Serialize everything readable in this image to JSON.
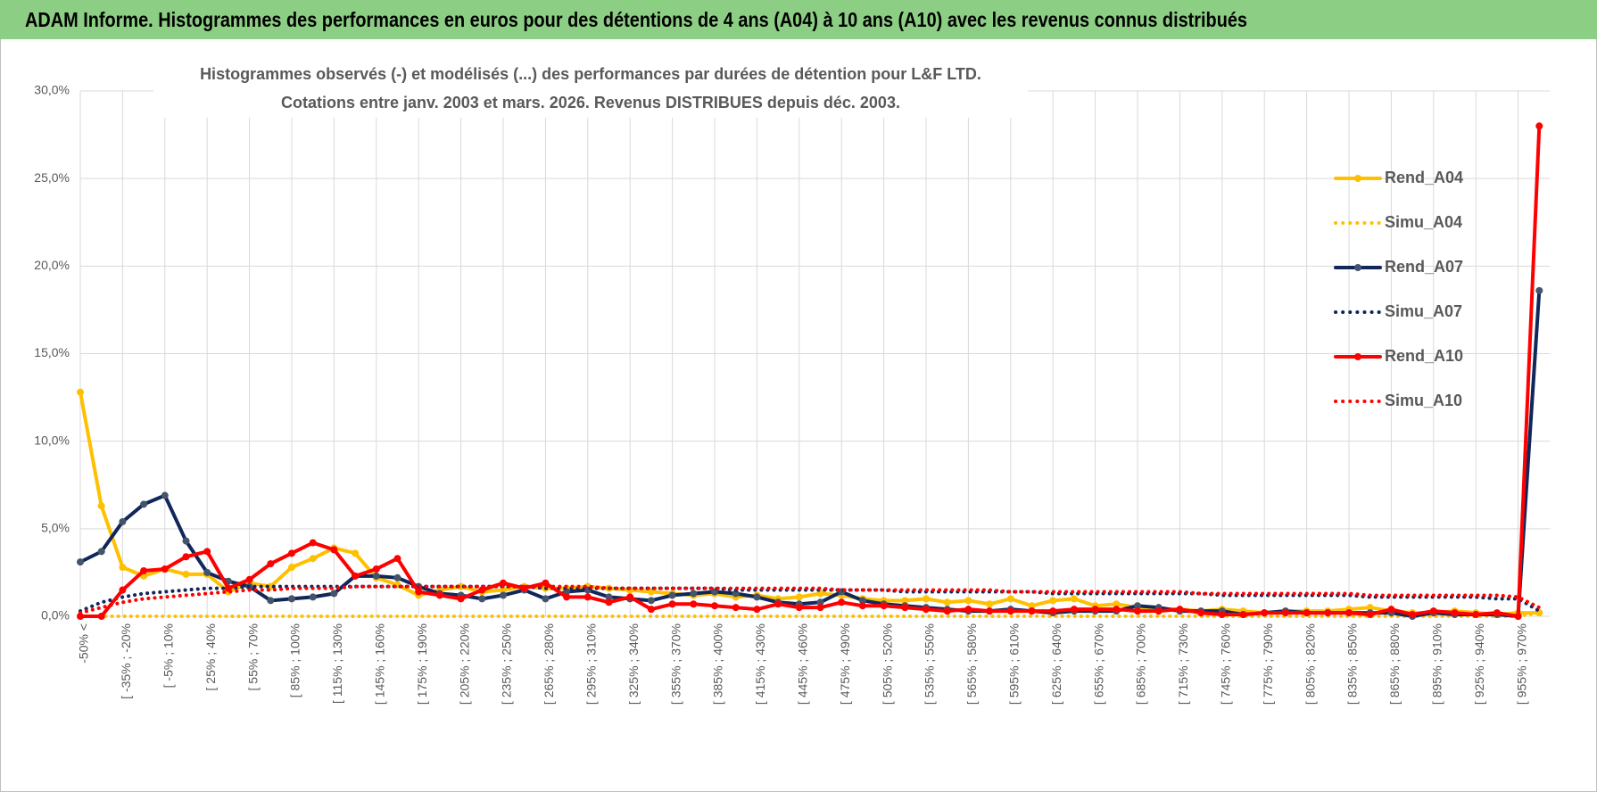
{
  "header": {
    "title": "ADAM Informe. Histogrammes des performances en euros pour des détentions de 4 ans (A04) à 10 ans (A10) avec les revenus connus distribués"
  },
  "chart_data": {
    "type": "line",
    "title": "Histogrammes observés (-) et modélisés (...) des performances par durées de détention pour L&F LTD.",
    "subtitle": "Cotations entre janv. 2003 et mars. 2026. Revenus DISTRIBUES depuis déc. 2003.",
    "categories": [
      "-50% <",
      null,
      "[ -35% ; -20%",
      null,
      "[ -5% ; 10%",
      null,
      "[ 25% ; 40%",
      null,
      "[ 55% ; 70%",
      null,
      "[ 85% ; 100%",
      null,
      "[ 115% ; 130%",
      null,
      "[ 145% ; 160%",
      null,
      "[ 175% ; 190%",
      null,
      "[ 205% ; 220%",
      null,
      "[ 235% ; 250%",
      null,
      "[ 265% ; 280%",
      null,
      "[ 295% ; 310%",
      null,
      "[ 325% ; 340%",
      null,
      "[ 355% ; 370%",
      null,
      "[ 385% ; 400%",
      null,
      "[ 415% ; 430%",
      null,
      "[ 445% ; 460%",
      null,
      "[ 475% ; 490%",
      null,
      "[ 505% ; 520%",
      null,
      "[ 535% ; 550%",
      null,
      "[ 565% ; 580%",
      null,
      "[ 595% ; 610%",
      null,
      "[ 625% ; 640%",
      null,
      "[ 655% ; 670%",
      null,
      "[ 685% ; 700%",
      null,
      "[ 715% ; 730%",
      null,
      "[ 745% ; 760%",
      null,
      "[ 775% ; 790%",
      null,
      "[ 805% ; 820%",
      null,
      "[ 835% ; 850%",
      null,
      "[ 865% ; 880%",
      null,
      "[ 895% ; 910%",
      null,
      "[ 925% ; 940%",
      null,
      "[ 955% ; 970%",
      null
    ],
    "series": [
      {
        "name": "Rend_A04",
        "color": "#ffc000",
        "style": "solid",
        "markers": true,
        "values": [
          12.8,
          6.3,
          2.8,
          2.3,
          2.7,
          2.4,
          2.4,
          1.4,
          1.9,
          1.7,
          2.8,
          3.3,
          3.9,
          3.6,
          2.2,
          1.8,
          1.2,
          1.5,
          1.7,
          1.4,
          1.5,
          1.7,
          1.6,
          1.6,
          1.7,
          1.6,
          1.5,
          1.4,
          1.3,
          1.2,
          1.3,
          1.1,
          1.2,
          1.0,
          1.1,
          1.3,
          1.2,
          1.0,
          0.9,
          0.9,
          1.0,
          0.8,
          0.9,
          0.7,
          1.0,
          0.6,
          0.9,
          1.0,
          0.6,
          0.7,
          0.5,
          0.4,
          0.4,
          0.3,
          0.4,
          0.3,
          0.2,
          0.3,
          0.3,
          0.3,
          0.4,
          0.5,
          0.3,
          0.2,
          0.2,
          0.3,
          0.2,
          0.1,
          0.2,
          0.2
        ]
      },
      {
        "name": "Simu_A04",
        "color": "#ffc000",
        "style": "dotted",
        "markers": false,
        "values": [
          0,
          0,
          0,
          0,
          0,
          0,
          0,
          0,
          0,
          0,
          0,
          0,
          0,
          0,
          0,
          0,
          0,
          0,
          0,
          0,
          0,
          0,
          0,
          0,
          0,
          0,
          0,
          0,
          0,
          0,
          0,
          0,
          0,
          0,
          0,
          0,
          0,
          0,
          0,
          0,
          0,
          0,
          0,
          0,
          0,
          0,
          0,
          0,
          0,
          0,
          0,
          0,
          0,
          0,
          0,
          0,
          0,
          0,
          0,
          0,
          0,
          0,
          0,
          0,
          0,
          0,
          0,
          0,
          0,
          0.2
        ]
      },
      {
        "name": "Rend_A07",
        "color": "#10275a",
        "style": "solid",
        "markers": true,
        "marker_color": "#44546a",
        "values": [
          3.1,
          3.7,
          5.4,
          6.4,
          6.9,
          4.3,
          2.5,
          2.0,
          1.7,
          0.9,
          1.0,
          1.1,
          1.3,
          2.3,
          2.3,
          2.2,
          1.7,
          1.3,
          1.2,
          1.0,
          1.2,
          1.5,
          1.0,
          1.4,
          1.5,
          1.1,
          1.0,
          0.9,
          1.2,
          1.3,
          1.4,
          1.3,
          1.1,
          0.8,
          0.7,
          0.8,
          1.4,
          0.9,
          0.7,
          0.6,
          0.5,
          0.4,
          0.3,
          0.3,
          0.4,
          0.3,
          0.2,
          0.3,
          0.3,
          0.3,
          0.6,
          0.5,
          0.3,
          0.3,
          0.3,
          0.1,
          0.2,
          0.3,
          0.2,
          0.2,
          0.2,
          0.2,
          0.2,
          0.0,
          0.2,
          0.1,
          0.1,
          0.1,
          0.0,
          18.6
        ]
      },
      {
        "name": "Simu_A07",
        "color": "#10275a",
        "style": "dotted",
        "markers": false,
        "values": [
          0.3,
          0.8,
          1.1,
          1.3,
          1.4,
          1.5,
          1.6,
          1.6,
          1.7,
          1.7,
          1.7,
          1.7,
          1.7,
          1.7,
          1.7,
          1.7,
          1.7,
          1.7,
          1.7,
          1.7,
          1.7,
          1.7,
          1.6,
          1.6,
          1.6,
          1.6,
          1.6,
          1.6,
          1.6,
          1.6,
          1.6,
          1.5,
          1.5,
          1.5,
          1.5,
          1.5,
          1.5,
          1.5,
          1.5,
          1.4,
          1.4,
          1.4,
          1.4,
          1.4,
          1.4,
          1.4,
          1.3,
          1.3,
          1.3,
          1.3,
          1.3,
          1.3,
          1.3,
          1.3,
          1.2,
          1.2,
          1.2,
          1.2,
          1.2,
          1.2,
          1.2,
          1.1,
          1.1,
          1.1,
          1.1,
          1.1,
          1.1,
          1.0,
          1.0,
          0.3
        ]
      },
      {
        "name": "Rend_A10",
        "color": "#ff0000",
        "style": "solid",
        "markers": true,
        "values": [
          0.0,
          0.0,
          1.5,
          2.6,
          2.7,
          3.4,
          3.7,
          1.6,
          2.1,
          3.0,
          3.6,
          4.2,
          3.8,
          2.3,
          2.7,
          3.3,
          1.4,
          1.2,
          1.0,
          1.5,
          1.9,
          1.6,
          1.9,
          1.1,
          1.1,
          0.8,
          1.1,
          0.4,
          0.7,
          0.7,
          0.6,
          0.5,
          0.4,
          0.7,
          0.5,
          0.5,
          0.8,
          0.6,
          0.6,
          0.5,
          0.4,
          0.3,
          0.4,
          0.3,
          0.3,
          0.3,
          0.3,
          0.4,
          0.4,
          0.4,
          0.3,
          0.3,
          0.4,
          0.2,
          0.1,
          0.1,
          0.2,
          0.2,
          0.2,
          0.2,
          0.2,
          0.1,
          0.4,
          0.1,
          0.3,
          0.2,
          0.1,
          0.2,
          0.0,
          28.0
        ]
      },
      {
        "name": "Simu_A10",
        "color": "#ff0000",
        "style": "dotted",
        "markers": false,
        "values": [
          0.2,
          0.5,
          0.8,
          1.0,
          1.1,
          1.2,
          1.3,
          1.4,
          1.5,
          1.5,
          1.6,
          1.6,
          1.6,
          1.7,
          1.7,
          1.7,
          1.7,
          1.7,
          1.7,
          1.7,
          1.7,
          1.7,
          1.7,
          1.7,
          1.7,
          1.6,
          1.6,
          1.6,
          1.6,
          1.6,
          1.6,
          1.6,
          1.6,
          1.6,
          1.6,
          1.6,
          1.5,
          1.5,
          1.5,
          1.5,
          1.5,
          1.5,
          1.5,
          1.5,
          1.4,
          1.4,
          1.4,
          1.4,
          1.4,
          1.4,
          1.4,
          1.4,
          1.4,
          1.3,
          1.3,
          1.3,
          1.3,
          1.3,
          1.3,
          1.3,
          1.3,
          1.2,
          1.2,
          1.2,
          1.2,
          1.2,
          1.2,
          1.2,
          1.1,
          0.5
        ]
      }
    ],
    "ylim": [
      0,
      30
    ],
    "yticks": [
      {
        "value": 0,
        "label": "0,0%"
      },
      {
        "value": 5,
        "label": "5,0%"
      },
      {
        "value": 10,
        "label": "10,0%"
      },
      {
        "value": 15,
        "label": "15,0%"
      },
      {
        "value": 20,
        "label": "20,0%"
      },
      {
        "value": 25,
        "label": "25,0%"
      },
      {
        "value": 30,
        "label": "30,0%"
      }
    ],
    "grid": true,
    "legend": "right"
  }
}
